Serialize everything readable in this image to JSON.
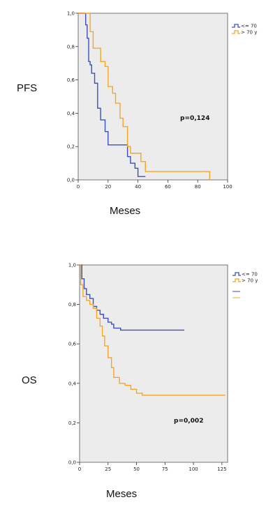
{
  "chart_data": [
    {
      "type": "line",
      "panel_label": "PFS",
      "xlabel": "Meses",
      "ylabel": "",
      "annotation": "p=0,124",
      "xlim": [
        0,
        100
      ],
      "ylim": [
        0,
        1
      ],
      "xticks": [
        0,
        20,
        40,
        60,
        80,
        100
      ],
      "yticks": [
        "0,0",
        "0,2",
        "0,4",
        "0,6",
        "0,8",
        "1,0"
      ],
      "grid": false,
      "legend_position": "top-right",
      "colors": {
        "le70": "#3b4fbf",
        "gt70": "#f5a623",
        "background": "#ececec"
      },
      "series": [
        {
          "name": "<= 70",
          "color": "#3b4fbf",
          "step": true,
          "x": [
            0,
            5,
            6,
            7,
            8,
            9,
            11,
            13,
            15,
            18,
            20,
            23,
            30,
            33,
            35,
            38,
            40,
            42,
            45
          ],
          "y": [
            1.0,
            0.93,
            0.85,
            0.71,
            0.69,
            0.64,
            0.58,
            0.43,
            0.36,
            0.29,
            0.21,
            0.21,
            0.21,
            0.14,
            0.1,
            0.07,
            0.02,
            0.02,
            0.02
          ]
        },
        {
          "name": "> 70 y",
          "color": "#f5a623",
          "step": true,
          "x": [
            0,
            8,
            10,
            12,
            15,
            18,
            20,
            23,
            25,
            28,
            30,
            33,
            35,
            40,
            42,
            45,
            88
          ],
          "y": [
            1.0,
            0.89,
            0.79,
            0.79,
            0.71,
            0.68,
            0.56,
            0.52,
            0.46,
            0.37,
            0.32,
            0.2,
            0.16,
            0.16,
            0.11,
            0.05,
            0.0
          ]
        }
      ]
    },
    {
      "type": "line",
      "panel_label": "OS",
      "xlabel": "Meses",
      "ylabel": "",
      "annotation": "p=0,002",
      "xlim": [
        0,
        130
      ],
      "ylim": [
        0,
        1
      ],
      "xticks": [
        0,
        25,
        50,
        75,
        100,
        125
      ],
      "yticks": [
        "0,0",
        "0,2",
        "0,4",
        "0,6",
        "0,8",
        "1,0"
      ],
      "grid": false,
      "legend_position": "top-right",
      "colors": {
        "le70": "#3b4fbf",
        "gt70": "#f5a623",
        "background": "#ececec"
      },
      "series": [
        {
          "name": "<= 70",
          "color": "#3b4fbf",
          "step": true,
          "x": [
            0,
            2,
            4,
            6,
            9,
            12,
            15,
            18,
            21,
            25,
            28,
            30,
            33,
            36,
            92
          ],
          "y": [
            1.0,
            0.93,
            0.88,
            0.85,
            0.83,
            0.79,
            0.77,
            0.75,
            0.73,
            0.71,
            0.7,
            0.68,
            0.68,
            0.67,
            0.67
          ]
        },
        {
          "name": "> 70 y",
          "color": "#f5a623",
          "step": true,
          "x": [
            0,
            1,
            3,
            6,
            9,
            12,
            15,
            18,
            20,
            22,
            25,
            28,
            30,
            35,
            40,
            45,
            50,
            55,
            128
          ],
          "y": [
            1.0,
            0.9,
            0.84,
            0.82,
            0.8,
            0.78,
            0.73,
            0.69,
            0.64,
            0.59,
            0.53,
            0.48,
            0.43,
            0.4,
            0.39,
            0.37,
            0.35,
            0.34,
            0.34
          ]
        }
      ]
    }
  ]
}
